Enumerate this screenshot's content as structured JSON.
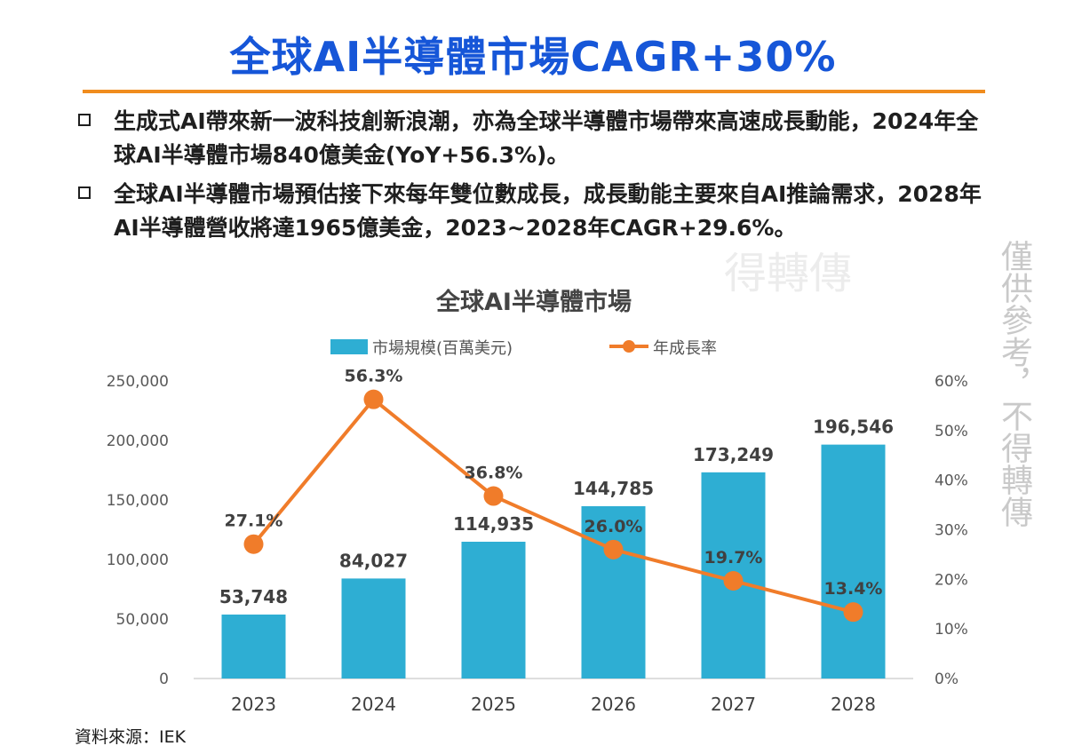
{
  "slide": {
    "title": "全球AI半導體市場CAGR+30%",
    "bullets": [
      "生成式AI帶來新一波科技創新浪潮，亦為全球半導體市場帶來高速成長動能，2024年全球AI半導體市場840億美金(YoY+56.3%)。",
      "全球AI半導體市場預估接下來每年雙位數成長，成長動能主要來自AI推論需求，2028年AI半導體營收將達1965億美金，2023~2028年CAGR+29.6%。"
    ],
    "source": "資料來源：IEK",
    "watermark": "僅供參考，不得轉傳",
    "watermark_faint": "得轉傳"
  },
  "chart_data": {
    "type": "bar",
    "title": "全球AI半導體市場",
    "categories": [
      "2023",
      "2024",
      "2025",
      "2026",
      "2027",
      "2028"
    ],
    "series": [
      {
        "name": "市場規模(百萬美元)",
        "type": "bar",
        "axis": "left",
        "color": "#2eaed3",
        "values": [
          53748,
          84027,
          114935,
          144785,
          173249,
          196546
        ],
        "labels": [
          "53,748",
          "84,027",
          "114,935",
          "144,785",
          "173,249",
          "196,546"
        ]
      },
      {
        "name": "年成長率",
        "type": "line",
        "axis": "right",
        "color": "#f07c2a",
        "values": [
          27.1,
          56.3,
          36.8,
          26.0,
          19.7,
          13.4
        ],
        "labels": [
          "27.1%",
          "56.3%",
          "36.8%",
          "26.0%",
          "19.7%",
          "13.4%"
        ]
      }
    ],
    "y_left": {
      "ylim": [
        0,
        250000
      ],
      "ticks": [
        0,
        50000,
        100000,
        150000,
        200000,
        250000
      ],
      "tick_labels": [
        "0",
        "50,000",
        "100,000",
        "150,000",
        "200,000",
        "250,000"
      ]
    },
    "y_right": {
      "ylim": [
        0,
        60
      ],
      "ticks": [
        0,
        10,
        20,
        30,
        40,
        50,
        60
      ],
      "tick_labels": [
        "0%",
        "10%",
        "20%",
        "30%",
        "40%",
        "50%",
        "60%"
      ]
    },
    "legend_position": "top-center",
    "grid": false
  }
}
